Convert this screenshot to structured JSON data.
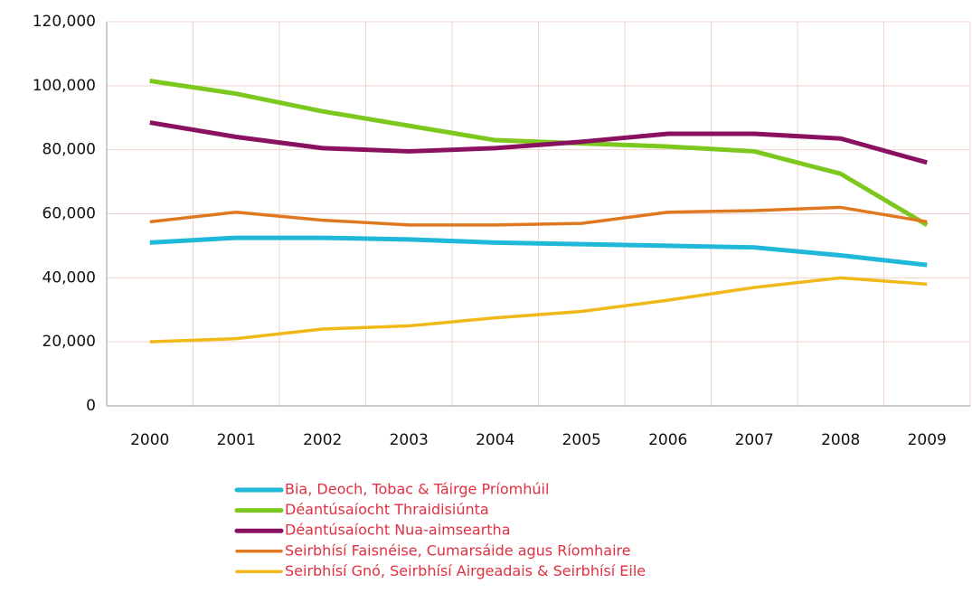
{
  "chart_data": {
    "type": "line",
    "categories": [
      "2000",
      "2001",
      "2002",
      "2003",
      "2004",
      "2005",
      "2006",
      "2007",
      "2008",
      "2009"
    ],
    "series": [
      {
        "name": "Bia, Deoch, Tobac & Táirge Príomhúil",
        "color": "#1fb8d8",
        "values": [
          51000,
          52500,
          52500,
          52000,
          51000,
          50500,
          50000,
          49500,
          47000,
          44000
        ]
      },
      {
        "name": "Déantúsaíocht Thraidisiúnta",
        "color": "#7cc81e",
        "values": [
          101500,
          97500,
          92000,
          87500,
          83000,
          82000,
          81000,
          79500,
          72500,
          56500
        ]
      },
      {
        "name": "Déantúsaíocht Nua-aimseartha",
        "color": "#8a1060",
        "values": [
          88500,
          84000,
          80500,
          79500,
          80500,
          82500,
          85000,
          85000,
          83500,
          76000
        ]
      },
      {
        "name": "Seirbhísí Faisnéise, Cumarsáide agus Ríomhaire",
        "color": "#e07820",
        "values": [
          57500,
          60500,
          58000,
          56500,
          56500,
          57000,
          60500,
          61000,
          62000,
          57500
        ]
      },
      {
        "name": "Seirbhísí Gnó, Seirbhísí Airgeadais & Seirbhísí Eile",
        "color": "#f0b818",
        "values": [
          20000,
          21000,
          24000,
          25000,
          27500,
          29500,
          33000,
          37000,
          40000,
          38000
        ]
      }
    ],
    "ylim": [
      0,
      120000
    ],
    "yticks": [
      0,
      {
        "value": 20000,
        "label": "20,000"
      },
      {
        "value": 40000,
        "label": "40,000"
      },
      {
        "value": 60000,
        "label": "60,000"
      },
      {
        "value": 80000,
        "label": "80,000"
      },
      {
        "value": 100000,
        "label": "100,000"
      },
      {
        "value": 120000,
        "label": "120,000"
      }
    ],
    "grid": true
  }
}
